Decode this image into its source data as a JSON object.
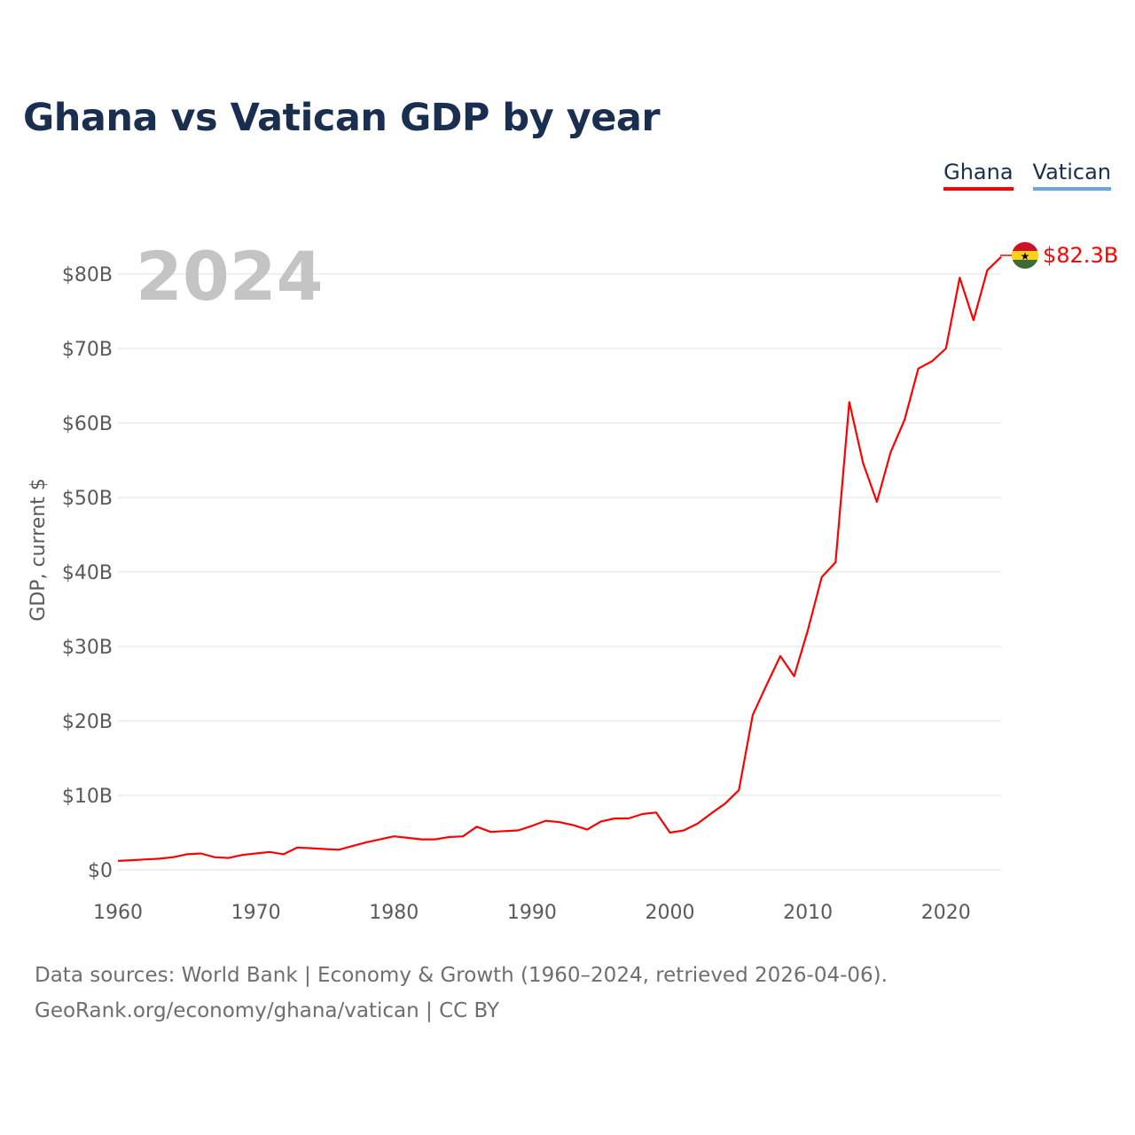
{
  "title": "Ghana vs Vatican GDP by year",
  "legend": [
    {
      "name": "Ghana",
      "color": "#ff0000"
    },
    {
      "name": "Vatican",
      "color": "#6aa7e0"
    }
  ],
  "year_label": "2024",
  "end_label": "$82.3B",
  "flag_icon": "ghana-flag-icon",
  "footer": {
    "line1": "Data sources: World Bank | Economy & Growth (1960–2024, retrieved 2026-04-06).",
    "line2": "GeoRank.org/economy/ghana/vatican | CC BY"
  },
  "chart_data": {
    "type": "line",
    "title": "Ghana vs Vatican GDP by year",
    "xlabel": "",
    "ylabel": "GDP, current $",
    "xlim": [
      1960,
      2024
    ],
    "ylim": [
      0,
      80
    ],
    "x_ticks": [
      1960,
      1970,
      1980,
      1990,
      2000,
      2010,
      2020
    ],
    "y_ticks": [
      0,
      10,
      20,
      30,
      40,
      50,
      60,
      70,
      80
    ],
    "y_tick_labels": [
      "$0",
      "$10B",
      "$20B",
      "$30B",
      "$40B",
      "$50B",
      "$60B",
      "$70B",
      "$80B"
    ],
    "grid": true,
    "series": [
      {
        "name": "Ghana",
        "color": "#ff0000",
        "x": [
          1960,
          1961,
          1962,
          1963,
          1964,
          1965,
          1966,
          1967,
          1968,
          1969,
          1970,
          1971,
          1972,
          1973,
          1974,
          1975,
          1976,
          1977,
          1978,
          1979,
          1980,
          1981,
          1982,
          1983,
          1984,
          1985,
          1986,
          1987,
          1988,
          1989,
          1990,
          1991,
          1992,
          1993,
          1994,
          1995,
          1996,
          1997,
          1998,
          1999,
          2000,
          2001,
          2002,
          2003,
          2004,
          2005,
          2006,
          2007,
          2008,
          2009,
          2010,
          2011,
          2012,
          2013,
          2014,
          2015,
          2016,
          2017,
          2018,
          2019,
          2020,
          2021,
          2022,
          2023,
          2024
        ],
        "values": [
          1.2,
          1.3,
          1.4,
          1.5,
          1.7,
          2.1,
          2.2,
          1.7,
          1.6,
          2.0,
          2.2,
          2.4,
          2.1,
          3.0,
          2.9,
          2.8,
          2.7,
          3.2,
          3.7,
          4.1,
          4.5,
          4.3,
          4.1,
          4.1,
          4.4,
          4.5,
          5.8,
          5.1,
          5.2,
          5.3,
          5.9,
          6.6,
          6.4,
          6.0,
          5.4,
          6.5,
          6.9,
          6.9,
          7.5,
          7.7,
          5.0,
          5.3,
          6.2,
          7.6,
          8.9,
          10.7,
          20.8,
          24.8,
          28.7,
          26.0,
          32.2,
          39.3,
          41.3,
          62.8,
          54.6,
          49.4,
          56.1,
          60.4,
          67.3,
          68.3,
          70.0,
          79.5,
          73.8,
          80.5,
          82.3
        ]
      },
      {
        "name": "Vatican",
        "color": "#6aa7e0",
        "x": [],
        "values": []
      }
    ]
  }
}
